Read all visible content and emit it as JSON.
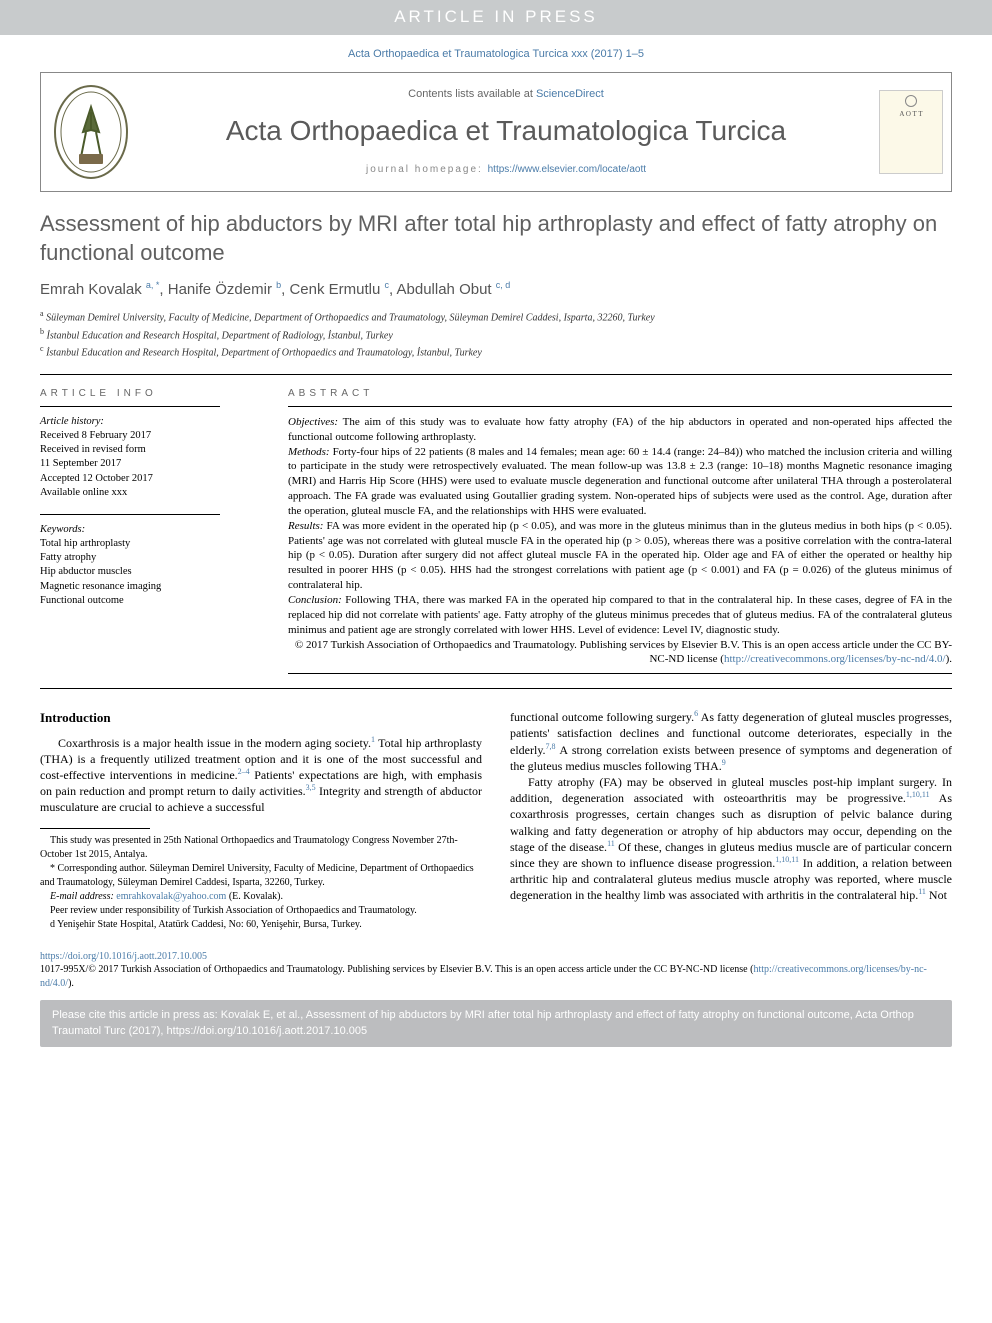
{
  "banner": {
    "text": "ARTICLE IN PRESS"
  },
  "header": {
    "citation_line": "Acta Orthopaedica et Traumatologica Turcica xxx (2017) 1–5",
    "contents_prefix": "Contents lists available at ",
    "contents_link": "ScienceDirect",
    "journal_name": "Acta Orthopaedica et Traumatologica Turcica",
    "homepage_prefix": "journal homepage: ",
    "homepage_url": "https://www.elsevier.com/locate/aott",
    "thumb_text": "A O T T"
  },
  "article": {
    "title": "Assessment of hip abductors by MRI after total hip arthroplasty and effect of fatty atrophy on functional outcome",
    "authors_html": "Emrah Kovalak <sup>a, *</sup>, Hanife Özdemir <sup>b</sup>, Cenk Ermutlu <sup>c</sup>, Abdullah Obut <sup>c, d</sup>",
    "affiliations": [
      "a Süleyman Demirel University, Faculty of Medicine, Department of Orthopaedics and Traumatology, Süleyman Demirel Caddesi, Isparta, 32260, Turkey",
      "b İstanbul Education and Research Hospital, Department of Radiology, İstanbul, Turkey",
      "c İstanbul Education and Research Hospital, Department of Orthopaedics and Traumatology, İstanbul, Turkey"
    ]
  },
  "info": {
    "label": "ARTICLE INFO",
    "history_label": "Article history:",
    "history": [
      "Received 8 February 2017",
      "Received in revised form",
      "11 September 2017",
      "Accepted 12 October 2017",
      "Available online xxx"
    ],
    "keywords_label": "Keywords:",
    "keywords": [
      "Total hip arthroplasty",
      "Fatty atrophy",
      "Hip abductor muscles",
      "Magnetic resonance imaging",
      "Functional outcome"
    ]
  },
  "abstract": {
    "label": "ABSTRACT",
    "objectives_label": "Objectives:",
    "objectives": " The aim of this study was to evaluate how fatty atrophy (FA) of the hip abductors in operated and non-operated hips affected the functional outcome following arthroplasty.",
    "methods_label": "Methods:",
    "methods": " Forty-four hips of 22 patients (8 males and 14 females; mean age: 60 ± 14.4 (range: 24–84)) who matched the inclusion criteria and willing to participate in the study were retrospectively evaluated. The mean follow-up was 13.8 ± 2.3 (range: 10–18) months Magnetic resonance imaging (MRI) and Harris Hip Score (HHS) were used to evaluate muscle degeneration and functional outcome after unilateral THA through a posterolateral approach. The FA grade was evaluated using Goutallier grading system. Non-operated hips of subjects were used as the control. Age, duration after the operation, gluteal muscle FA, and the relationships with HHS were evaluated.",
    "results_label": "Results:",
    "results": " FA was more evident in the operated hip (p < 0.05), and was more in the gluteus minimus than in the gluteus medius in both hips (p < 0.05). Patients' age was not correlated with gluteal muscle FA in the operated hip (p > 0.05), whereas there was a positive correlation with the contra-lateral hip (p < 0.05). Duration after surgery did not affect gluteal muscle FA in the operated hip. Older age and FA of either the operated or healthy hip resulted in poorer HHS (p < 0.05). HHS had the strongest correlations with patient age (p < 0.001) and FA (p = 0.026) of the gluteus minimus of contralateral hip.",
    "conclusion_label": "Conclusion:",
    "conclusion": " Following THA, there was marked FA in the operated hip compared to that in the contralateral hip. In these cases, degree of FA in the replaced hip did not correlate with patients' age. Fatty atrophy of the gluteus minimus precedes that of gluteus medius. FA of the contralateral gluteus minimus and patient age are strongly correlated with lower HHS. Level of evidence: Level IV, diagnostic study.",
    "copyright": "© 2017 Turkish Association of Orthopaedics and Traumatology. Publishing services by Elsevier B.V. This is an open access article under the CC BY-NC-ND license (",
    "license_url": "http://creativecommons.org/licenses/by-nc-nd/4.0/",
    "copyright_close": ")."
  },
  "body": {
    "intro_heading": "Introduction",
    "intro_para": "Coxarthrosis is a major health issue in the modern aging society.<sup>1</sup> Total hip arthroplasty (THA) is a frequently utilized treatment option and it is one of the most successful and cost-effective interventions in medicine.<sup>2–4</sup> Patients' expectations are high, with emphasis on pain reduction and prompt return to daily activities.<sup>3,5</sup> Integrity and strength of abductor musculature are crucial to achieve a successful",
    "col2_para1": "functional outcome following surgery.<sup>6</sup> As fatty degeneration of gluteal muscles progresses, patients' satisfaction declines and functional outcome deteriorates, especially in the elderly.<sup>7,8</sup> A strong correlation exists between presence of symptoms and degeneration of the gluteus medius muscles following THA.<sup>9</sup>",
    "col2_para2": "Fatty atrophy (FA) may be observed in gluteal muscles post-hip implant surgery. In addition, degeneration associated with osteoarthritis may be progressive.<sup>1,10,11</sup> As coxarthrosis progresses, certain changes such as disruption of pelvic balance during walking and fatty degeneration or atrophy of hip abductors may occur, depending on the stage of the disease.<sup>11</sup> Of these, changes in gluteus medius muscle are of particular concern since they are shown to influence disease progression.<sup>1,10,11</sup> In addition, a relation between arthritic hip and contralateral gluteus medius muscle atrophy was reported, where muscle degeneration in the healthy limb was associated with arthritis in the contralateral hip.<sup>11</sup> Not"
  },
  "footnotes": {
    "note1": "This study was presented in 25th National Orthopaedics and Traumatology Congress November 27th-October 1st 2015, Antalya.",
    "corr_label": "* Corresponding author.",
    "corr": " Süleyman Demirel University, Faculty of Medicine, Department of Orthopaedics and Traumatology, Süleyman Demirel Caddesi, Isparta, 32260, Turkey.",
    "email_label": "E-mail address:",
    "email": "emrahkovalak@yahoo.com",
    "email_suffix": " (E. Kovalak).",
    "peer_review": "Peer review under responsibility of Turkish Association of Orthopaedics and Traumatology.",
    "note_d": "d Yenişehir State Hospital, Atatürk Caddesi, No: 60, Yenişehir, Bursa, Turkey."
  },
  "doi": {
    "url": "https://doi.org/10.1016/j.aott.2017.10.005",
    "line2a": "1017-995X/© 2017 Turkish Association of Orthopaedics and Traumatology. Publishing services by Elsevier B.V. This is an open access article under the CC BY-NC-ND license (",
    "license_url": "http://creativecommons.org/licenses/by-nc-nd/4.0/",
    "line2b": ")."
  },
  "citebox": {
    "text": "Please cite this article in press as: Kovalak E, et al., Assessment of hip abductors by MRI after total hip arthroplasty and effect of fatty atrophy on functional outcome, Acta Orthop Traumatol Turc (2017), https://doi.org/10.1016/j.aott.2017.10.005"
  },
  "colors": {
    "banner_bg": "#c8cbcc",
    "link": "#4a7ba8",
    "heading_gray": "#606060",
    "cite_bg": "#bcbdbf"
  }
}
